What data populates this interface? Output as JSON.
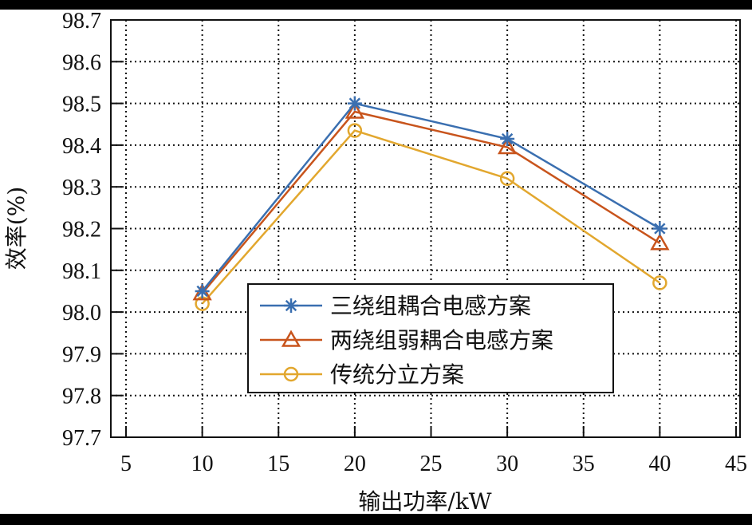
{
  "chart_data": {
    "type": "line",
    "title": "",
    "xlabel": "输出功率/kW",
    "ylabel": "效率(%)",
    "xlim": [
      5,
      45
    ],
    "ylim": [
      97.7,
      98.7
    ],
    "xticks": [
      5,
      10,
      15,
      20,
      25,
      30,
      35,
      40,
      45
    ],
    "yticks": [
      97.7,
      97.8,
      97.9,
      98.0,
      98.1,
      98.2,
      98.3,
      98.4,
      98.5,
      98.6,
      98.7
    ],
    "ytick_labels": [
      "97.7",
      "97.8",
      "97.9",
      "98.0",
      "98.1",
      "98.2",
      "98.3",
      "98.4",
      "98.5",
      "98.6",
      "98.7"
    ],
    "grid": true,
    "grid_style": "dotted",
    "legend_position": "lower center (inside)",
    "x": [
      10,
      20,
      30,
      40
    ],
    "series": [
      {
        "name": "三绕组耦合电感方案",
        "marker": "asterisk",
        "color": "#3a6fb0",
        "values": [
          98.05,
          98.5,
          98.415,
          98.2
        ]
      },
      {
        "name": "两绕组弱耦合电感方案",
        "marker": "triangle",
        "color": "#c8541c",
        "values": [
          98.045,
          98.48,
          98.395,
          98.165
        ]
      },
      {
        "name": "传统分立方案",
        "marker": "circle",
        "color": "#e2a72e",
        "values": [
          98.02,
          98.435,
          98.32,
          98.07
        ]
      }
    ]
  }
}
